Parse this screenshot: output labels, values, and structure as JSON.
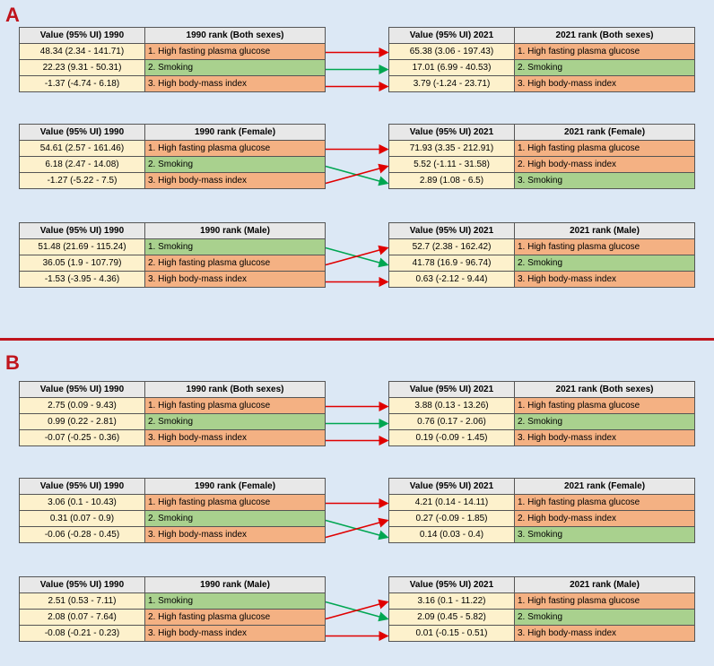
{
  "colors": {
    "high fasting plasma glucose": "#f4b183",
    "smoking": "#a9d18e",
    "high body-mass index": "#f4b183",
    "up_arrow": "#e00000",
    "down_arrow": "#00a651"
  },
  "panels": [
    {
      "label": "A",
      "groups": [
        {
          "title": "Both sexes",
          "left": {
            "h1": "Value (95% UI) 1990",
            "h2": "1990 rank (Both sexes)",
            "rows": [
              {
                "value": "48.34 (2.34 - 141.71)",
                "rank": "1. High fasting plasma glucose",
                "factor": "high fasting plasma glucose"
              },
              {
                "value": "22.23 (9.31 - 50.31)",
                "rank": "2. Smoking",
                "factor": "smoking"
              },
              {
                "value": "-1.37 (-4.74 - 6.18)",
                "rank": "3. High body-mass index",
                "factor": "high body-mass index"
              }
            ]
          },
          "right": {
            "h1": "Value (95% UI) 2021",
            "h2": "2021 rank (Both sexes)",
            "rows": [
              {
                "value": "65.38 (3.06 - 197.43)",
                "rank": "1. High fasting plasma glucose",
                "factor": "high fasting plasma glucose"
              },
              {
                "value": "17.01 (6.99 - 40.53)",
                "rank": "2. Smoking",
                "factor": "smoking"
              },
              {
                "value": "3.79 (-1.24 - 23.71)",
                "rank": "3. High body-mass index",
                "factor": "high body-mass index"
              }
            ]
          },
          "arrows": [
            {
              "from": 0,
              "to": 0,
              "color": "red"
            },
            {
              "from": 1,
              "to": 1,
              "color": "green"
            },
            {
              "from": 2,
              "to": 2,
              "color": "red"
            }
          ]
        },
        {
          "title": "Female",
          "left": {
            "h1": "Value (95% UI) 1990",
            "h2": "1990 rank (Female)",
            "rows": [
              {
                "value": "54.61 (2.57 - 161.46)",
                "rank": "1. High fasting plasma glucose",
                "factor": "high fasting plasma glucose"
              },
              {
                "value": "6.18 (2.47 - 14.08)",
                "rank": "2. Smoking",
                "factor": "smoking"
              },
              {
                "value": "-1.27 (-5.22 - 7.5)",
                "rank": "3. High body-mass index",
                "factor": "high body-mass index"
              }
            ]
          },
          "right": {
            "h1": "Value (95% UI) 2021",
            "h2": "2021 rank (Female)",
            "rows": [
              {
                "value": "71.93 (3.35 - 212.91)",
                "rank": "1. High fasting plasma glucose",
                "factor": "high fasting plasma glucose"
              },
              {
                "value": "5.52 (-1.11 - 31.58)",
                "rank": "2. High body-mass index",
                "factor": "high body-mass index"
              },
              {
                "value": "2.89 (1.08 - 6.5)",
                "rank": "3. Smoking",
                "factor": "smoking"
              }
            ]
          },
          "arrows": [
            {
              "from": 0,
              "to": 0,
              "color": "red"
            },
            {
              "from": 1,
              "to": 2,
              "color": "green"
            },
            {
              "from": 2,
              "to": 1,
              "color": "red"
            }
          ]
        },
        {
          "title": "Male",
          "left": {
            "h1": "Value (95% UI) 1990",
            "h2": "1990 rank (Male)",
            "rows": [
              {
                "value": "51.48 (21.69 - 115.24)",
                "rank": "1. Smoking",
                "factor": "smoking"
              },
              {
                "value": "36.05 (1.9 - 107.79)",
                "rank": "2. High fasting plasma glucose",
                "factor": "high fasting plasma glucose"
              },
              {
                "value": "-1.53 (-3.95 - 4.36)",
                "rank": "3. High body-mass index",
                "factor": "high body-mass index"
              }
            ]
          },
          "right": {
            "h1": "Value (95% UI) 2021",
            "h2": "2021 rank (Male)",
            "rows": [
              {
                "value": "52.7 (2.38 - 162.42)",
                "rank": "1. High fasting plasma glucose",
                "factor": "high fasting plasma glucose"
              },
              {
                "value": "41.78 (16.9 - 96.74)",
                "rank": "2. Smoking",
                "factor": "smoking"
              },
              {
                "value": "0.63 (-2.12 - 9.44)",
                "rank": "3. High body-mass index",
                "factor": "high body-mass index"
              }
            ]
          },
          "arrows": [
            {
              "from": 0,
              "to": 1,
              "color": "green"
            },
            {
              "from": 1,
              "to": 0,
              "color": "red"
            },
            {
              "from": 2,
              "to": 2,
              "color": "red"
            }
          ]
        }
      ]
    },
    {
      "label": "B",
      "groups": [
        {
          "title": "Both sexes",
          "left": {
            "h1": "Value (95% UI) 1990",
            "h2": "1990 rank (Both sexes)",
            "rows": [
              {
                "value": "2.75 (0.09 - 9.43)",
                "rank": "1. High fasting plasma glucose",
                "factor": "high fasting plasma glucose"
              },
              {
                "value": "0.99 (0.22 - 2.81)",
                "rank": "2. Smoking",
                "factor": "smoking"
              },
              {
                "value": "-0.07 (-0.25 - 0.36)",
                "rank": "3. High body-mass index",
                "factor": "high body-mass index"
              }
            ]
          },
          "right": {
            "h1": "Value (95% UI) 2021",
            "h2": "2021 rank (Both sexes)",
            "rows": [
              {
                "value": "3.88 (0.13 - 13.26)",
                "rank": "1. High fasting plasma glucose",
                "factor": "high fasting plasma glucose"
              },
              {
                "value": "0.76 (0.17 - 2.06)",
                "rank": "2. Smoking",
                "factor": "smoking"
              },
              {
                "value": "0.19 (-0.09 - 1.45)",
                "rank": "3. High body-mass index",
                "factor": "high body-mass index"
              }
            ]
          },
          "arrows": [
            {
              "from": 0,
              "to": 0,
              "color": "red"
            },
            {
              "from": 1,
              "to": 1,
              "color": "green"
            },
            {
              "from": 2,
              "to": 2,
              "color": "red"
            }
          ]
        },
        {
          "title": "Female",
          "left": {
            "h1": "Value (95% UI) 1990",
            "h2": "1990 rank (Female)",
            "rows": [
              {
                "value": "3.06 (0.1 - 10.43)",
                "rank": "1. High fasting plasma glucose",
                "factor": "high fasting plasma glucose"
              },
              {
                "value": "0.31 (0.07 - 0.9)",
                "rank": "2. Smoking",
                "factor": "smoking"
              },
              {
                "value": "-0.06 (-0.28 - 0.45)",
                "rank": "3. High body-mass index",
                "factor": "high body-mass index"
              }
            ]
          },
          "right": {
            "h1": "Value (95% UI) 2021",
            "h2": "2021 rank (Female)",
            "rows": [
              {
                "value": "4.21 (0.14 - 14.11)",
                "rank": "1. High fasting plasma glucose",
                "factor": "high fasting plasma glucose"
              },
              {
                "value": "0.27 (-0.09 - 1.85)",
                "rank": "2. High body-mass index",
                "factor": "high body-mass index"
              },
              {
                "value": "0.14 (0.03 - 0.4)",
                "rank": "3. Smoking",
                "factor": "smoking"
              }
            ]
          },
          "arrows": [
            {
              "from": 0,
              "to": 0,
              "color": "red"
            },
            {
              "from": 1,
              "to": 2,
              "color": "green"
            },
            {
              "from": 2,
              "to": 1,
              "color": "red"
            }
          ]
        },
        {
          "title": "Male",
          "left": {
            "h1": "Value (95% UI) 1990",
            "h2": "1990 rank (Male)",
            "rows": [
              {
                "value": "2.51 (0.53 - 7.11)",
                "rank": "1. Smoking",
                "factor": "smoking"
              },
              {
                "value": "2.08 (0.07 - 7.64)",
                "rank": "2. High fasting plasma glucose",
                "factor": "high fasting plasma glucose"
              },
              {
                "value": "-0.08 (-0.21 - 0.23)",
                "rank": "3. High body-mass index",
                "factor": "high body-mass index"
              }
            ]
          },
          "right": {
            "h1": "Value (95% UI) 2021",
            "h2": "2021 rank (Male)",
            "rows": [
              {
                "value": "3.16 (0.1 - 11.22)",
                "rank": "1. High fasting plasma glucose",
                "factor": "high fasting plasma glucose"
              },
              {
                "value": "2.09 (0.45 - 5.82)",
                "rank": "2. Smoking",
                "factor": "smoking"
              },
              {
                "value": "0.01 (-0.15 - 0.51)",
                "rank": "3. High body-mass index",
                "factor": "high body-mass index"
              }
            ]
          },
          "arrows": [
            {
              "from": 0,
              "to": 1,
              "color": "green"
            },
            {
              "from": 1,
              "to": 0,
              "color": "red"
            },
            {
              "from": 2,
              "to": 2,
              "color": "red"
            }
          ]
        }
      ]
    }
  ]
}
